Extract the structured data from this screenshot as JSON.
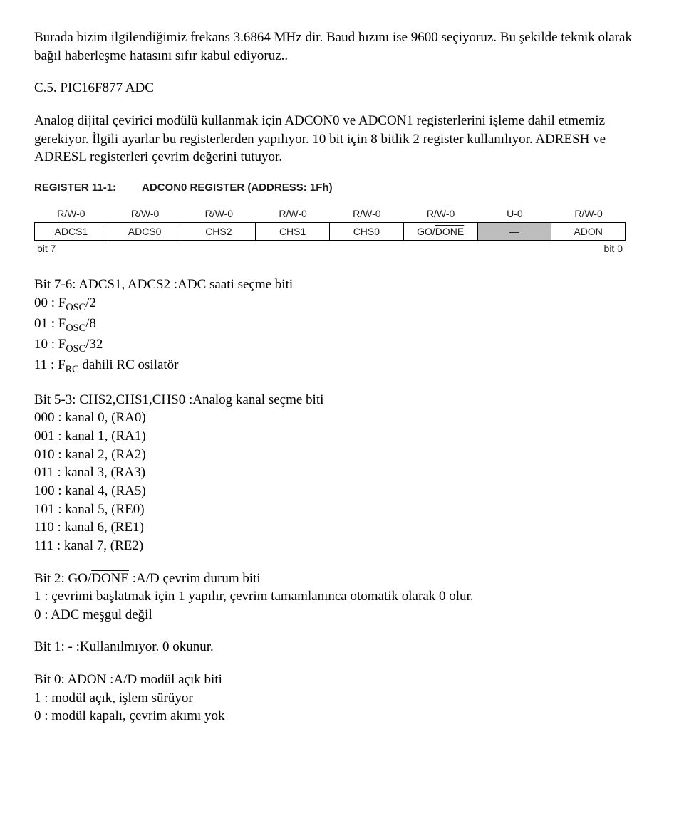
{
  "intro": "Burada bizim ilgilendiğimiz frekans 3.6864 MHz dir. Baud hızını ise 9600 seçiyoruz. Bu şekilde teknik olarak bağıl haberleşme hatasını sıfır kabul ediyoruz..",
  "section_num": "C.5. PIC16F877 ADC",
  "section_body": "Analog dijital çevirici modülü kullanmak için ADCON0 ve ADCON1 registerlerini işleme dahil etmemiz gerekiyor. İlgili ayarlar bu registerlerden yapılıyor. 10 bit için 8 bitlik 2 register kullanılıyor. ADRESH ve ADRESL registerleri çevrim değerini tutuyor.",
  "register": {
    "label": "REGISTER 11-1:",
    "title": "ADCON0 REGISTER (ADDRESS: 1Fh)",
    "bits": [
      {
        "rw": "R/W-0",
        "name": "ADCS1",
        "gray": false
      },
      {
        "rw": "R/W-0",
        "name": "ADCS0",
        "gray": false
      },
      {
        "rw": "R/W-0",
        "name": "CHS2",
        "gray": false
      },
      {
        "rw": "R/W-0",
        "name": "CHS1",
        "gray": false
      },
      {
        "rw": "R/W-0",
        "name": "CHS0",
        "gray": false
      },
      {
        "rw": "R/W-0",
        "name": "GO/DONE_OVER",
        "gray": false
      },
      {
        "rw": "U-0",
        "name": "—",
        "gray": true
      },
      {
        "rw": "R/W-0",
        "name": "ADON",
        "gray": false
      }
    ],
    "foot_left": "bit 7",
    "foot_right": "bit 0"
  },
  "bit76": {
    "head": "Bit 7-6:  ADCS1, ADCS2 :ADC saati seçme biti",
    "l1": "00 : F",
    "l1b": "/2",
    "l2": "01 : F",
    "l2b": "/8",
    "l3": "10 : F",
    "l3b": "/32",
    "l4": "11 : F",
    "l4b": " dahili RC osilatör",
    "sub_osc": "OSC",
    "sub_rc": "RC"
  },
  "bit53": {
    "head": "Bit 5-3:  CHS2,CHS1,CHS0 :Analog kanal seçme biti",
    "rows": [
      "000 : kanal 0, (RA0)",
      "001 : kanal 1, (RA1)",
      "010 : kanal 2, (RA2)",
      "011 : kanal 3, (RA3)",
      "100 : kanal 4, (RA5)",
      "101 : kanal 5, (RE0)",
      "110 : kanal 6, (RE1)",
      "111 : kanal 7, (RE2)"
    ]
  },
  "bit2": {
    "head_pre": "Bit 2:  GO/",
    "head_over": "DONE",
    "head_post": " :A/D çevrim durum biti",
    "l1": "1 : çevrimi başlatmak için 1 yapılır, çevrim tamamlanınca otomatik olarak 0 olur.",
    "l2": "0 : ADC meşgul değil"
  },
  "bit1": {
    "head": "Bit 1:  -  :Kullanılmıyor. 0 okunur."
  },
  "bit0": {
    "head": "Bit 0:  ADON :A/D modül açık biti",
    "l1": "1 :  modül açık, işlem sürüyor",
    "l2": "0 :  modül kapalı, çevrim akımı yok"
  }
}
